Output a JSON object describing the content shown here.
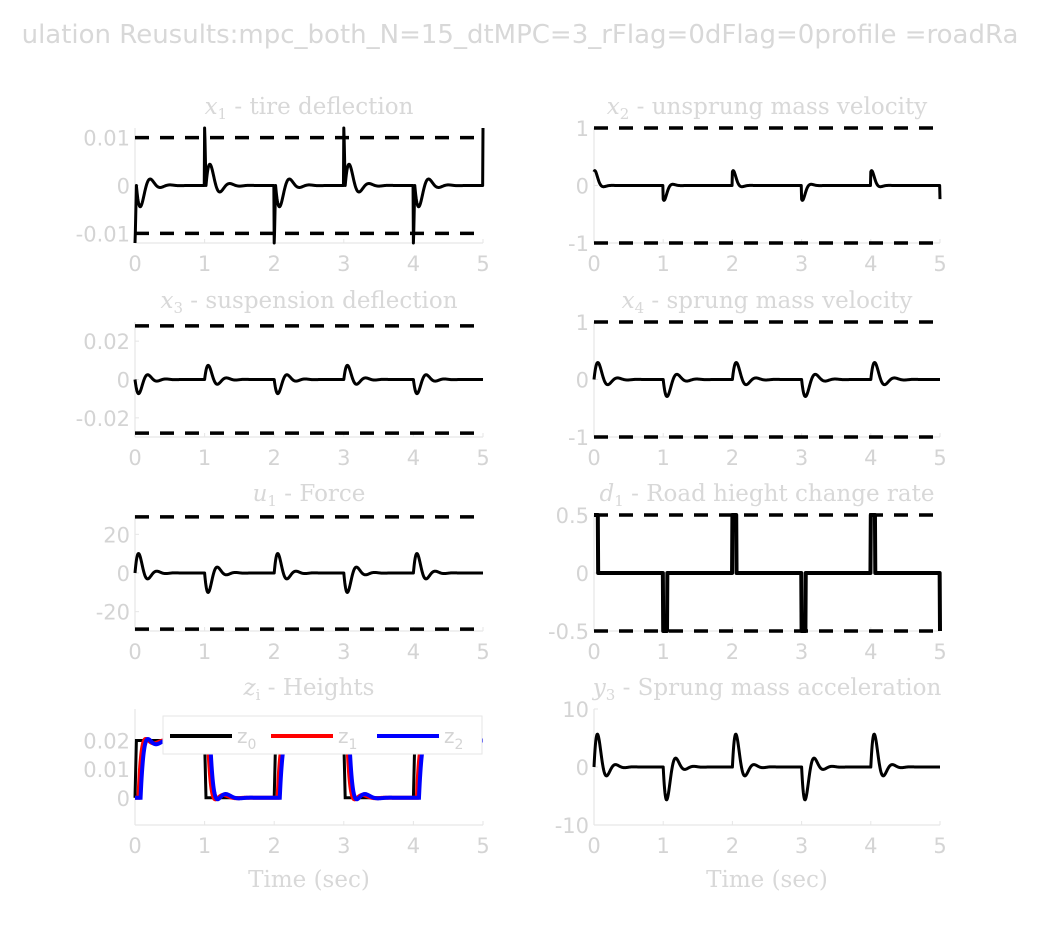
{
  "figure_title": "ulation Reusults:mpc_both_N=15_dtMPC=3_rFlag=0dFlag=0profile =roadRa",
  "colors": {
    "text": "#d8d8d8",
    "axis": "#e6e6e6",
    "z0": "#000000",
    "z1": "#ff0000",
    "z2": "#0000ff"
  },
  "chart_data": [
    {
      "type": "line",
      "title_var": "x",
      "title_sub": "1",
      "title_rest": " - tire deflection",
      "xlim": [
        0,
        5
      ],
      "ylim": [
        -0.012,
        0.012
      ],
      "xticks": [
        0,
        1,
        2,
        3,
        4,
        5
      ],
      "xtick_labels": [
        "0",
        "1",
        "2",
        "3",
        "4",
        "5"
      ],
      "yticks": [
        -0.01,
        0,
        0.01
      ],
      "ytick_labels": [
        "-0.01",
        "0",
        "0.01"
      ],
      "bounds": [
        -0.01,
        0.01
      ],
      "signal": {
        "kind": "impulse",
        "amp": 0.0075,
        "tau": 0.12,
        "omega": 22,
        "spike": 0.013,
        "period": 2,
        "sign0": -1,
        "thin": 3
      },
      "xlabel": ""
    },
    {
      "type": "line",
      "title_var": "x",
      "title_sub": "2",
      "title_rest": " - unsprung mass velocity",
      "xlim": [
        0,
        5
      ],
      "ylim": [
        -1,
        1
      ],
      "xticks": [
        0,
        1,
        2,
        3,
        4,
        5
      ],
      "xtick_labels": [
        "0",
        "1",
        "2",
        "3",
        "4",
        "5"
      ],
      "yticks": [
        -1,
        0,
        1
      ],
      "ytick_labels": [
        "-1",
        "0",
        "1"
      ],
      "bounds": [
        -1,
        1
      ],
      "signal": {
        "kind": "bump",
        "amp": 0.42,
        "tau": 0.05,
        "omega": 25,
        "period": 2,
        "sign0": 1,
        "thin": 3
      },
      "xlabel": ""
    },
    {
      "type": "line",
      "title_var": "x",
      "title_sub": "3",
      "title_rest": " - suspension deflection",
      "xlim": [
        0,
        5
      ],
      "ylim": [
        -0.03,
        0.03
      ],
      "xticks": [
        0,
        1,
        2,
        3,
        4,
        5
      ],
      "xtick_labels": [
        "0",
        "1",
        "2",
        "3",
        "4",
        "5"
      ],
      "yticks": [
        -0.02,
        0,
        0.02
      ],
      "ytick_labels": [
        "-0.02",
        "0",
        "0.02"
      ],
      "bounds": [
        -0.028,
        0.028
      ],
      "signal": {
        "kind": "osc",
        "amp": 0.012,
        "tau": 0.12,
        "omega": 24,
        "period": 2,
        "sign0": -1,
        "thin": 3
      },
      "xlabel": ""
    },
    {
      "type": "line",
      "title_var": "x",
      "title_sub": "4",
      "title_rest": " - sprung mass velocity",
      "xlim": [
        0,
        5
      ],
      "ylim": [
        -1,
        1
      ],
      "xticks": [
        0,
        1,
        2,
        3,
        4,
        5
      ],
      "xtick_labels": [
        "0",
        "1",
        "2",
        "3",
        "4",
        "5"
      ],
      "yticks": [
        -1,
        0,
        1
      ],
      "ytick_labels": [
        "-1",
        "0",
        "1"
      ],
      "bounds": [
        -1,
        1
      ],
      "signal": {
        "kind": "osc",
        "amp": 0.5,
        "tau": 0.12,
        "omega": 22,
        "period": 2,
        "sign0": 1,
        "thin": 3
      },
      "xlabel": ""
    },
    {
      "type": "line",
      "title_var": "u",
      "title_sub": "1",
      "title_rest": " - Force",
      "xlim": [
        0,
        5
      ],
      "ylim": [
        -30,
        30
      ],
      "xticks": [
        0,
        1,
        2,
        3,
        4,
        5
      ],
      "xtick_labels": [
        "0",
        "1",
        "2",
        "3",
        "4",
        "5"
      ],
      "yticks": [
        -20,
        0,
        20
      ],
      "ytick_labels": [
        "-20",
        "0",
        "20"
      ],
      "bounds": [
        -29,
        29
      ],
      "signal": {
        "kind": "osc",
        "amp": 17,
        "tau": 0.11,
        "omega": 24,
        "period": 2,
        "sign0": 1,
        "thin": 3
      },
      "xlabel": ""
    },
    {
      "type": "line",
      "title_var": "d",
      "title_sub": "1",
      "title_rest": " - Road hieght change rate",
      "xlim": [
        0,
        5
      ],
      "ylim": [
        -0.5,
        0.5
      ],
      "xticks": [
        0,
        1,
        2,
        3,
        4,
        5
      ],
      "xtick_labels": [
        "0",
        "1",
        "2",
        "3",
        "4",
        "5"
      ],
      "yticks": [
        -0.5,
        0,
        0.5
      ],
      "ytick_labels": [
        "-0.5",
        "0",
        "0.5"
      ],
      "bounds": [
        -0.5,
        0.5
      ],
      "signal": {
        "kind": "pulses",
        "amp": 0.5,
        "width": 0.06,
        "period": 2,
        "sign0": 1,
        "thin": 4
      },
      "xlabel": ""
    },
    {
      "type": "line",
      "title_var": "z",
      "title_sub": "i",
      "title_rest": " - Heights",
      "xlim": [
        0,
        5
      ],
      "ylim": [
        -0.0095,
        0.031
      ],
      "xticks": [
        0,
        1,
        2,
        3,
        4,
        5
      ],
      "xtick_labels": [
        "0",
        "1",
        "2",
        "3",
        "4",
        "5"
      ],
      "yticks": [
        0,
        0.01,
        0.02
      ],
      "ytick_labels": [
        "0",
        "0.01",
        "0.02"
      ],
      "bounds": [],
      "signal": {
        "kind": "heights",
        "level": 0.02,
        "period": 2
      },
      "series": [
        {
          "name": "z",
          "sub": "0",
          "lag": 0.0,
          "amp": 0.0,
          "tau": 0.1,
          "color": "#000000"
        },
        {
          "name": "z",
          "sub": "1",
          "lag": 0.05,
          "amp": 0.009,
          "tau": 0.1,
          "color": "#ff0000"
        },
        {
          "name": "z",
          "sub": "2",
          "lag": 0.08,
          "amp": 0.0095,
          "tau": 0.11,
          "color": "#0000ff"
        }
      ],
      "legend": "top",
      "xlabel": "Time (sec)"
    },
    {
      "type": "line",
      "title_var": "y",
      "title_sub": "3",
      "title_rest": " - Sprung mass acceleration",
      "xlim": [
        0,
        5
      ],
      "ylim": [
        -10,
        10
      ],
      "xticks": [
        0,
        1,
        2,
        3,
        4,
        5
      ],
      "xtick_labels": [
        "0",
        "1",
        "2",
        "3",
        "4",
        "5"
      ],
      "yticks": [
        -10,
        0,
        10
      ],
      "ytick_labels": [
        "-10",
        "0",
        "10"
      ],
      "bounds": [],
      "signal": {
        "kind": "osc",
        "amp": 10,
        "tau": 0.1,
        "omega": 24,
        "period": 2,
        "sign0": 1,
        "thin": 3
      },
      "xlabel": "Time (sec)"
    }
  ]
}
